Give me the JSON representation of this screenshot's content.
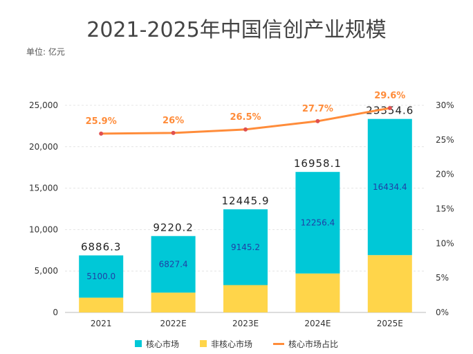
{
  "title": "2021-2025年中国信创产业规模",
  "unit": "单位: 亿元",
  "colors": {
    "core": "#00C8D7",
    "noncore": "#FFD54A",
    "share": "#FF8C3A",
    "share_point": "#E05050",
    "bar_inner_label": "#1F3FA6"
  },
  "chart_data": {
    "type": "bar",
    "stacked": true,
    "categories": [
      "2021",
      "2022E",
      "2023E",
      "2024E",
      "2025E"
    ],
    "series": [
      {
        "name": "核心市场",
        "values": [
          5100.0,
          6827.4,
          9145.2,
          12256.4,
          16434.4
        ],
        "labels": [
          "5100.0",
          "6827.4",
          "9145.2",
          "12256.4",
          "16434.4"
        ]
      },
      {
        "name": "非核心市场",
        "values": [
          1786.3,
          2392.8,
          3300.7,
          4701.7,
          6920.2
        ]
      }
    ],
    "totals": [
      6886.3,
      9220.2,
      12445.9,
      16958.1,
      23354.6
    ],
    "total_labels": [
      "6886.3",
      "9220.2",
      "12445.9",
      "16958.1",
      "23354.6"
    ],
    "line_series": {
      "name": "核心市场占比",
      "axis": "right",
      "values": [
        25.9,
        26.0,
        26.5,
        27.7,
        29.6
      ],
      "labels": [
        "25.9%",
        "26%",
        "26.5%",
        "27.7%",
        "29.6%"
      ]
    },
    "ylim": [
      0,
      25000
    ],
    "yticks": [
      "0",
      "5,000",
      "10,000",
      "15,000",
      "20,000",
      "25,000"
    ],
    "y2lim": [
      0,
      30
    ],
    "y2ticks": [
      "0%",
      "5%",
      "10%",
      "15%",
      "20%",
      "25%",
      "30%"
    ],
    "grid": true,
    "legend_position": "bottom"
  }
}
